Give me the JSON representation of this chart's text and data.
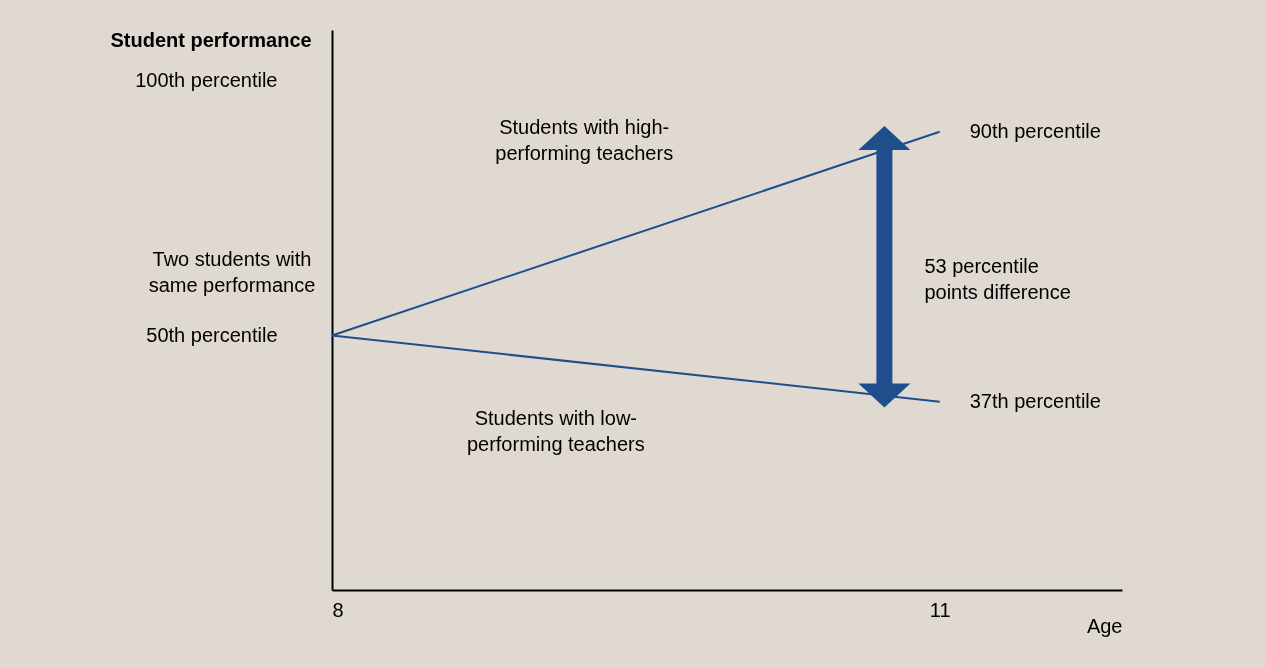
{
  "chart_data": {
    "type": "line",
    "xlabel": "Age",
    "ylabel": "Student performance",
    "x": [
      8,
      11
    ],
    "series": [
      {
        "color": "#1f4e8c",
        "values": [
          50,
          90
        ]
      },
      {
        "color": "#1f4e8c",
        "values": [
          50,
          37
        ]
      }
    ],
    "xlim": [
      8,
      11.9
    ],
    "ylim": [
      0,
      110
    ],
    "xticks": [
      8,
      11
    ],
    "yticks": [
      {
        "value": 50,
        "label": "50th percentile"
      },
      {
        "value": 100,
        "label": "100th percentile"
      }
    ],
    "grid": false,
    "legend": false,
    "annotations": [
      {
        "text": "Two students with same performance",
        "x": 8,
        "y": 50
      },
      {
        "text": "Students with high-performing teachers",
        "x": 9.64,
        "y": 72
      },
      {
        "text": "Students with low-performing teachers",
        "x": 9.5,
        "y": 43.5
      },
      "53 percentile points difference",
      {
        "text": "90th percentile",
        "x": 11,
        "y": 90
      },
      {
        "text": "37th percentile",
        "x": 11,
        "y": 37
      }
    ]
  }
}
